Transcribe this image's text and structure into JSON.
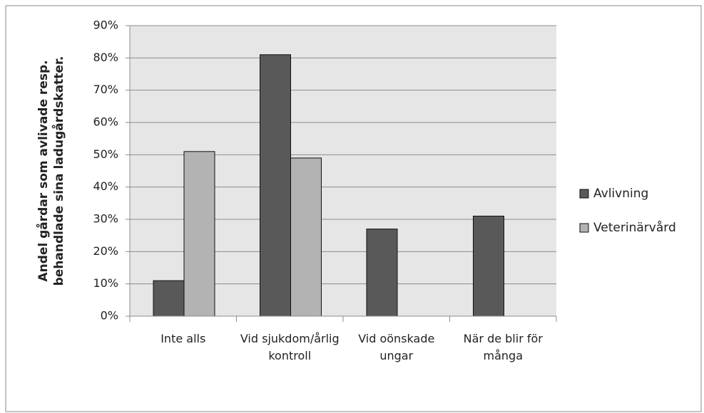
{
  "chart_data": {
    "type": "bar",
    "y_label": [
      "Andel gårdar som avlivade resp.",
      "behandlade sina ladugårdskatter."
    ],
    "categories": [
      "Inte alls",
      "Vid sjukdom/årlig kontroll",
      "Vid oönskade ungar",
      "När de blir för många"
    ],
    "series": [
      {
        "name": "Avlivning",
        "color": "#595959",
        "values": [
          11,
          81,
          27,
          31
        ]
      },
      {
        "name": "Veterinärvård",
        "color": "#b3b3b3",
        "values": [
          51,
          49,
          0,
          0
        ]
      }
    ],
    "ylim": [
      0,
      90
    ],
    "yticks": [
      {
        "value": 0,
        "label": "0%"
      },
      {
        "value": 10,
        "label": "10%"
      },
      {
        "value": 20,
        "label": "20%"
      },
      {
        "value": 30,
        "label": "30%"
      },
      {
        "value": 40,
        "label": "40%"
      },
      {
        "value": 50,
        "label": "50%"
      },
      {
        "value": 60,
        "label": "60%"
      },
      {
        "value": 70,
        "label": "70%"
      },
      {
        "value": 80,
        "label": "80%"
      },
      {
        "value": 90,
        "label": "90%"
      }
    ],
    "grid": true,
    "legend": "right"
  }
}
